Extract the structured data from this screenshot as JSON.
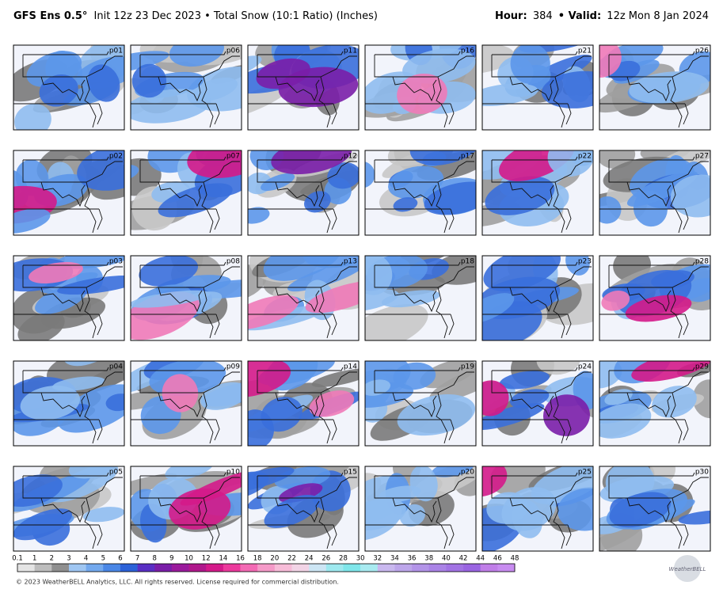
{
  "header": {
    "model": "GFS Ens 0.5°",
    "description": "Init 12z 23 Dec 2023 • Total Snow (10:1 Ratio) (Inches)",
    "hour_label": "Hour:",
    "hour": "384",
    "valid_label": "• Valid:",
    "valid": "12z Mon 8 Jan 2024"
  },
  "panels": [
    "p01",
    "p06",
    "p11",
    "p16",
    "p21",
    "p26",
    "p02",
    "p07",
    "p12",
    "p17",
    "p22",
    "p27",
    "p03",
    "p08",
    "p13",
    "p18",
    "p23",
    "p28",
    "p04",
    "p09",
    "p14",
    "p19",
    "p24",
    "p29",
    "p05",
    "p10",
    "p15",
    "p20",
    "p25",
    "p30"
  ],
  "colorbar": {
    "labels": [
      "0.1",
      "1",
      "2",
      "3",
      "4",
      "5",
      "6",
      "7",
      "8",
      "9",
      "10",
      "12",
      "14",
      "16",
      "18",
      "20",
      "22",
      "24",
      "26",
      "28",
      "30",
      "32",
      "34",
      "36",
      "38",
      "40",
      "42",
      "44",
      "46",
      "48"
    ],
    "colors": [
      "#e4e4e4",
      "#bdbdbd",
      "#8f8f8f",
      "#9fc6f2",
      "#73a9ee",
      "#4a87e6",
      "#2c62d8",
      "#5a2fc4",
      "#7a1ea8",
      "#9a1a9c",
      "#b0188c",
      "#d41a8a",
      "#ec3a9c",
      "#f36ab4",
      "#f59ac8",
      "#f7bcd8",
      "#f2d4e6",
      "#cde6f4",
      "#9ee9ef",
      "#7fe6ea",
      "#a8eaf0",
      "#c9b8ee",
      "#bda6ea",
      "#b394e8",
      "#aa83e6",
      "#a273e4",
      "#9a65e2",
      "#c07ee8",
      "#c88cf0"
    ]
  },
  "footer": {
    "copyright": "© 2023 WeatherBELL Analytics, LLC. All rights reserved. License required for commercial distribution.",
    "logo": "WeatherBELL"
  }
}
